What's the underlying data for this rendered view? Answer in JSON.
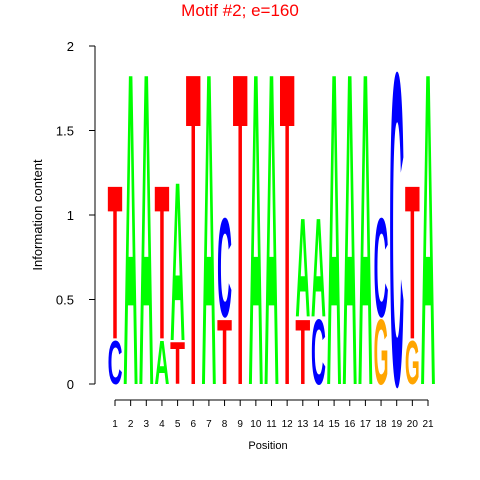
{
  "chart_data": {
    "type": "logo",
    "title": "Motif #2; e=160",
    "x_label": "Position",
    "y_label": "Information content",
    "ylim": [
      0,
      2
    ],
    "yticks": [
      0,
      0.5,
      1,
      1.5,
      2
    ],
    "categories": [
      "1",
      "2",
      "3",
      "4",
      "5",
      "6",
      "7",
      "8",
      "9",
      "10",
      "11",
      "12",
      "13",
      "14",
      "15",
      "16",
      "17",
      "18",
      "19",
      "20",
      "21"
    ],
    "colors": {
      "A": "#00ff00",
      "C": "#0000ff",
      "G": "#ffa500",
      "T": "#ff0000"
    },
    "stacks": [
      [
        {
          "letter": "C",
          "value": 0.27
        },
        {
          "letter": "T",
          "value": 0.95
        }
      ],
      [
        {
          "letter": "A",
          "value": 1.93
        }
      ],
      [
        {
          "letter": "A",
          "value": 1.93
        }
      ],
      [
        {
          "letter": "A",
          "value": 0.27
        },
        {
          "letter": "T",
          "value": 0.95
        }
      ],
      [
        {
          "letter": "T",
          "value": 0.26
        },
        {
          "letter": "A",
          "value": 0.98
        }
      ],
      [
        {
          "letter": "T",
          "value": 1.93
        }
      ],
      [
        {
          "letter": "A",
          "value": 1.93
        }
      ],
      [
        {
          "letter": "T",
          "value": 0.4
        },
        {
          "letter": "C",
          "value": 0.61
        }
      ],
      [
        {
          "letter": "T",
          "value": 1.93
        }
      ],
      [
        {
          "letter": "A",
          "value": 1.93
        }
      ],
      [
        {
          "letter": "A",
          "value": 1.93
        }
      ],
      [
        {
          "letter": "T",
          "value": 1.93
        }
      ],
      [
        {
          "letter": "T",
          "value": 0.4
        },
        {
          "letter": "A",
          "value": 0.61
        }
      ],
      [
        {
          "letter": "C",
          "value": 0.4
        },
        {
          "letter": "A",
          "value": 0.61
        }
      ],
      [
        {
          "letter": "A",
          "value": 1.93
        }
      ],
      [
        {
          "letter": "A",
          "value": 1.93
        }
      ],
      [
        {
          "letter": "A",
          "value": 1.93
        }
      ],
      [
        {
          "letter": "G",
          "value": 0.4
        },
        {
          "letter": "C",
          "value": 0.61
        }
      ],
      [
        {
          "letter": "C",
          "value": 1.93
        }
      ],
      [
        {
          "letter": "G",
          "value": 0.27
        },
        {
          "letter": "T",
          "value": 0.95
        }
      ],
      [
        {
          "letter": "A",
          "value": 1.93
        }
      ]
    ]
  }
}
